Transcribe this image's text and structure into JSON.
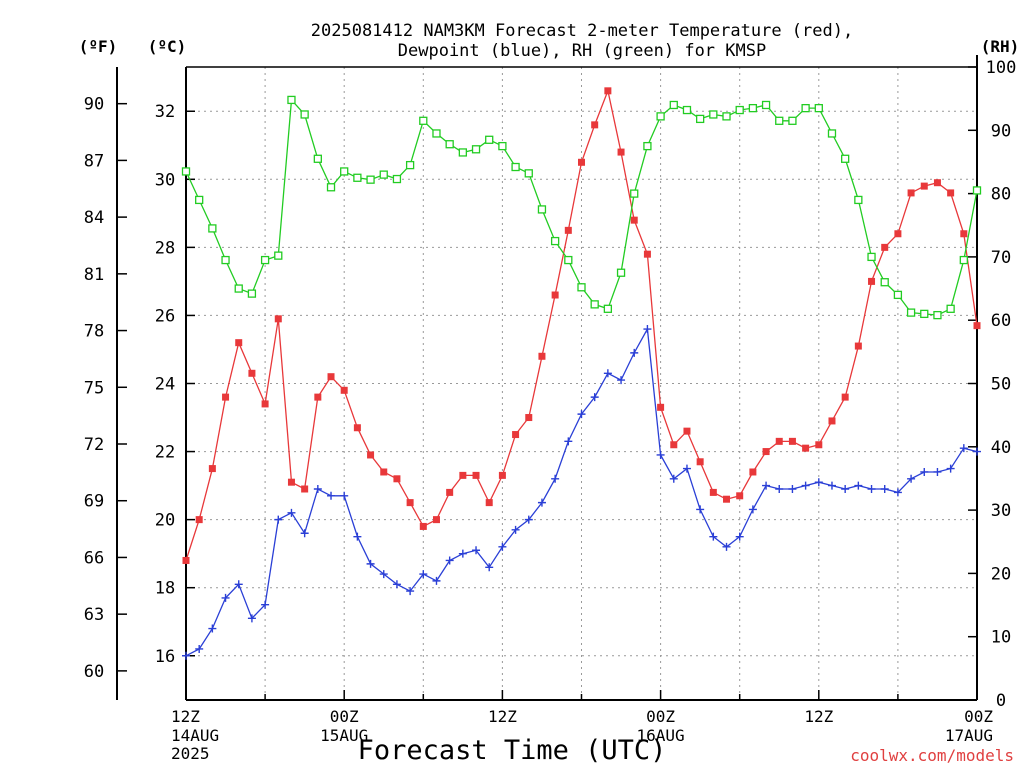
{
  "chart_data": {
    "type": "line",
    "title_line1": "2025081412 NAM3KM Forecast 2-meter Temperature (red),",
    "title_line2": "Dewpoint (blue), RH (green) for KMSP",
    "unit_f": "(ºF)",
    "unit_c": "(ºC)",
    "unit_rh": "(RH)",
    "xlabel": "Forecast Time (UTC)",
    "credit": "coolwx.com/models",
    "x_ticks": [
      {
        "hour": 0,
        "l1": "12Z",
        "l2": "14AUG",
        "l3": "2025"
      },
      {
        "hour": 12,
        "l1": "00Z",
        "l2": "15AUG",
        "l3": ""
      },
      {
        "hour": 24,
        "l1": "12Z",
        "l2": "",
        "l3": ""
      },
      {
        "hour": 36,
        "l1": "00Z",
        "l2": "16AUG",
        "l3": ""
      },
      {
        "hour": 48,
        "l1": "12Z",
        "l2": "",
        "l3": ""
      },
      {
        "hour": 60,
        "l1": "00Z",
        "l2": "17AUG",
        "l3": ""
      }
    ],
    "xlim_hours": [
      0,
      60
    ],
    "ylim_c": [
      14.7,
      33.3
    ],
    "ylim_rh": [
      0,
      100
    ],
    "y_ticks_c": [
      16,
      18,
      20,
      22,
      24,
      26,
      28,
      30,
      32
    ],
    "y_ticks_f": [
      60,
      63,
      66,
      69,
      72,
      75,
      78,
      81,
      84,
      87,
      90
    ],
    "y_ticks_rh": [
      0,
      10,
      20,
      30,
      40,
      50,
      60,
      70,
      80,
      90,
      100
    ],
    "grid": true,
    "series": [
      {
        "name": "Temperature",
        "color": "#e8383a",
        "marker": "filled-square",
        "axis": "c",
        "values": [
          18.8,
          20.0,
          21.5,
          23.6,
          25.2,
          24.3,
          23.4,
          25.9,
          21.1,
          20.9,
          23.6,
          24.2,
          23.8,
          22.7,
          21.9,
          21.4,
          21.2,
          20.5,
          19.8,
          20.0,
          20.8,
          21.3,
          21.3,
          20.5,
          21.3,
          22.5,
          23.0,
          24.8,
          26.6,
          28.5,
          30.5,
          31.6,
          32.6,
          30.8,
          28.8,
          27.8,
          23.3,
          22.2,
          22.6,
          21.7,
          20.8,
          20.6,
          20.7,
          21.4,
          22.0,
          22.3,
          22.3,
          22.1,
          22.2,
          22.9,
          23.6,
          25.1,
          27.0,
          28.0,
          28.4,
          29.6,
          29.8,
          29.9,
          29.6,
          28.4,
          25.7
        ]
      },
      {
        "name": "Dewpoint",
        "color": "#2a3fd6",
        "marker": "plus",
        "axis": "c",
        "values": [
          16.0,
          16.2,
          16.8,
          17.7,
          18.1,
          17.1,
          17.5,
          20.0,
          20.2,
          19.6,
          20.9,
          20.7,
          20.7,
          19.5,
          18.7,
          18.4,
          18.1,
          17.9,
          18.4,
          18.2,
          18.8,
          19.0,
          19.1,
          18.6,
          19.2,
          19.7,
          20.0,
          20.5,
          21.2,
          22.3,
          23.1,
          23.6,
          24.3,
          24.1,
          24.9,
          25.6,
          21.9,
          21.2,
          21.5,
          20.3,
          19.5,
          19.2,
          19.5,
          20.3,
          21.0,
          20.9,
          20.9,
          21.0,
          21.1,
          21.0,
          20.9,
          21.0,
          20.9,
          20.9,
          20.8,
          21.2,
          21.4,
          21.4,
          21.5,
          22.1,
          22.0
        ]
      },
      {
        "name": "RH",
        "color": "#22cc22",
        "marker": "open-square",
        "axis": "rh",
        "values": [
          83.5,
          79.0,
          74.5,
          69.5,
          65.0,
          64.2,
          69.5,
          70.2,
          94.8,
          92.5,
          85.5,
          81.0,
          83.5,
          82.5,
          82.2,
          83.0,
          82.3,
          84.5,
          91.5,
          89.5,
          87.8,
          86.5,
          87.0,
          88.5,
          87.5,
          84.2,
          83.2,
          77.5,
          72.5,
          69.5,
          65.2,
          62.5,
          61.8,
          67.5,
          80.0,
          87.5,
          92.2,
          94.0,
          93.2,
          91.8,
          92.5,
          92.2,
          93.2,
          93.5,
          94.0,
          91.5,
          91.5,
          93.5,
          93.5,
          89.5,
          85.5,
          79.0,
          70.0,
          66.0,
          64.0,
          61.2,
          61.0,
          60.8,
          61.8,
          69.5,
          80.5
        ]
      }
    ]
  }
}
